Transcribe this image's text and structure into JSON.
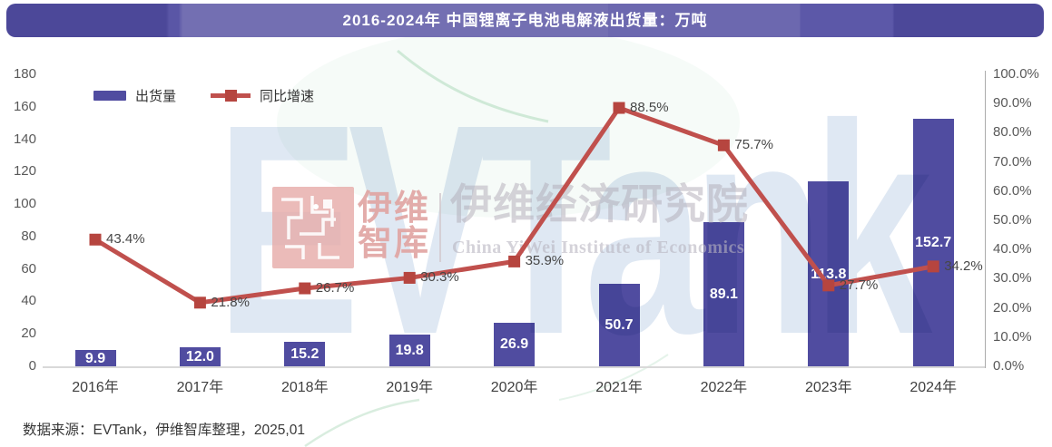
{
  "title": "2016-2024年 中国锂离子电池电解液出货量：万吨",
  "legend": {
    "bar_label": "出货量",
    "line_label": "同比增速"
  },
  "source": "数据来源：EVTank，伊维智库整理，2025,01",
  "watermark": {
    "brand": "EVTank",
    "logo_line1": "伊维",
    "logo_line2": "智库",
    "institute_cn": "伊维经济研究院",
    "institute_en": "China YiWei Institute of Economics"
  },
  "colors": {
    "bar": "#504CA0",
    "line": "#C0504D",
    "marker": "#B6453F",
    "banner_dark": "#4C4899",
    "banner_light": "#736FB2",
    "axis_line": "#ABABAB",
    "baseline": "#D9D9D9"
  },
  "chart_data": {
    "type": "bar+line combo",
    "title": "2016-2024年 中国锂离子电池电解液出货量：万吨",
    "categories": [
      "2016年",
      "2017年",
      "2018年",
      "2019年",
      "2020年",
      "2021年",
      "2022年",
      "2023年",
      "2024年"
    ],
    "series": [
      {
        "name": "出货量",
        "type": "bar",
        "axis": "left",
        "values": [
          9.9,
          12.0,
          15.2,
          19.8,
          26.9,
          50.7,
          89.1,
          113.8,
          152.7
        ],
        "labels": [
          "9.9",
          "12.0",
          "15.2",
          "19.8",
          "26.9",
          "50.7",
          "89.1",
          "113.8",
          "152.7"
        ]
      },
      {
        "name": "同比增速",
        "type": "line",
        "axis": "right",
        "values": [
          43.4,
          21.8,
          26.7,
          30.3,
          35.9,
          88.5,
          75.7,
          27.7,
          34.2
        ],
        "labels": [
          "43.4%",
          "21.8%",
          "26.7%",
          "30.3%",
          "35.9%",
          "88.5%",
          "75.7%",
          "27.7%",
          "34.2%"
        ]
      }
    ],
    "left_axis": {
      "min": 0,
      "max": 180,
      "ticks": [
        "180",
        "160",
        "140",
        "120",
        "100",
        "80",
        "60",
        "40",
        "20",
        "0"
      ]
    },
    "right_axis": {
      "min": 0,
      "max": 100,
      "ticks": [
        "100.0%",
        "90.0%",
        "80.0%",
        "70.0%",
        "60.0%",
        "50.0%",
        "40.0%",
        "30.0%",
        "20.0%",
        "10.0%",
        "0.0%"
      ]
    },
    "grid": "off",
    "legend_position": "top-left"
  }
}
